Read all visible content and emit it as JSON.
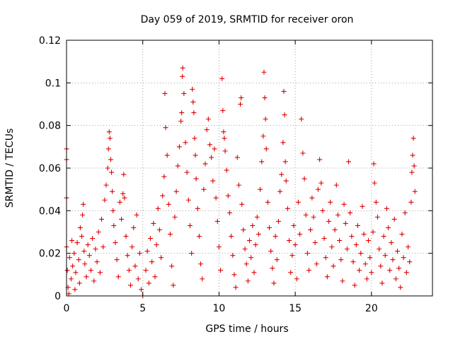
{
  "chart_data": {
    "type": "scatter",
    "title": "Day 059 of 2019, SRMTID for receiver oron",
    "xlabel": "GPS time / hours",
    "ylabel": "SRMTID / TECUs",
    "xlim": [
      0,
      24
    ],
    "ylim": [
      0,
      0.12
    ],
    "xticks": [
      0,
      5,
      10,
      15,
      20
    ],
    "xtick_labels": [
      "0",
      "5",
      "10",
      "15",
      "20"
    ],
    "yticks": [
      0,
      0.02,
      0.04,
      0.06,
      0.08,
      0.1,
      0.12
    ],
    "ytick_labels": [
      "0",
      "0.02",
      "0.04",
      "0.06",
      "0.08",
      "0.1",
      "0.12"
    ],
    "grid": true,
    "marker": "+",
    "series": [
      {
        "name": "SRMTID",
        "color": "#dd0000",
        "points": [
          [
            0.0,
            0.069
          ],
          [
            0.0,
            0.064
          ],
          [
            0.0,
            0.046
          ],
          [
            0.0,
            0.023
          ],
          [
            0.05,
            0.012
          ],
          [
            0.1,
            0.004
          ],
          [
            0.15,
            0.001
          ],
          [
            0.2,
            0.018
          ],
          [
            0.3,
            0.008
          ],
          [
            0.35,
            0.026
          ],
          [
            0.4,
            0.014
          ],
          [
            0.5,
            0.02
          ],
          [
            0.55,
            0.003
          ],
          [
            0.6,
            0.011
          ],
          [
            0.7,
            0.025
          ],
          [
            0.8,
            0.017
          ],
          [
            0.85,
            0.006
          ],
          [
            0.9,
            0.032
          ],
          [
            1.0,
            0.028
          ],
          [
            1.05,
            0.038
          ],
          [
            1.1,
            0.043
          ],
          [
            1.15,
            0.021
          ],
          [
            1.2,
            0.015
          ],
          [
            1.3,
            0.009
          ],
          [
            1.4,
            0.024
          ],
          [
            1.5,
            0.019
          ],
          [
            1.6,
            0.012
          ],
          [
            1.7,
            0.027
          ],
          [
            1.8,
            0.007
          ],
          [
            1.9,
            0.022
          ],
          [
            2.0,
            0.016
          ],
          [
            2.1,
            0.03
          ],
          [
            2.2,
            0.011
          ],
          [
            2.3,
            0.036
          ],
          [
            2.4,
            0.023
          ],
          [
            2.5,
            0.045
          ],
          [
            2.6,
            0.052
          ],
          [
            2.7,
            0.06
          ],
          [
            2.75,
            0.069
          ],
          [
            2.8,
            0.077
          ],
          [
            2.85,
            0.074
          ],
          [
            2.9,
            0.064
          ],
          [
            2.95,
            0.058
          ],
          [
            3.0,
            0.049
          ],
          [
            3.05,
            0.04
          ],
          [
            3.1,
            0.033
          ],
          [
            3.2,
            0.025
          ],
          [
            3.3,
            0.017
          ],
          [
            3.4,
            0.009
          ],
          [
            3.5,
            0.044
          ],
          [
            3.6,
            0.036
          ],
          [
            3.7,
            0.048
          ],
          [
            3.75,
            0.057
          ],
          [
            3.8,
            0.046
          ],
          [
            3.9,
            0.028
          ],
          [
            4.0,
            0.019
          ],
          [
            4.1,
            0.012
          ],
          [
            4.2,
            0.005
          ],
          [
            4.3,
            0.023
          ],
          [
            4.4,
            0.032
          ],
          [
            4.5,
            0.014
          ],
          [
            4.6,
            0.038
          ],
          [
            4.7,
            0.008
          ],
          [
            4.8,
            0.02
          ],
          [
            4.9,
            0.003
          ],
          [
            5.0,
            0.0
          ],
          [
            5.2,
            0.012
          ],
          [
            5.3,
            0.021
          ],
          [
            5.4,
            0.006
          ],
          [
            5.5,
            0.027
          ],
          [
            5.6,
            0.016
          ],
          [
            5.7,
            0.034
          ],
          [
            5.8,
            0.009
          ],
          [
            5.9,
            0.024
          ],
          [
            6.0,
            0.041
          ],
          [
            6.1,
            0.031
          ],
          [
            6.2,
            0.018
          ],
          [
            6.3,
            0.047
          ],
          [
            6.4,
            0.056
          ],
          [
            6.45,
            0.095
          ],
          [
            6.5,
            0.079
          ],
          [
            6.6,
            0.066
          ],
          [
            6.7,
            0.043
          ],
          [
            6.8,
            0.029
          ],
          [
            6.9,
            0.014
          ],
          [
            7.0,
            0.005
          ],
          [
            7.1,
            0.037
          ],
          [
            7.2,
            0.049
          ],
          [
            7.3,
            0.061
          ],
          [
            7.4,
            0.07
          ],
          [
            7.5,
            0.082
          ],
          [
            7.55,
            0.086
          ],
          [
            7.6,
            0.103
          ],
          [
            7.62,
            0.107
          ],
          [
            7.7,
            0.095
          ],
          [
            7.8,
            0.072
          ],
          [
            7.9,
            0.058
          ],
          [
            8.0,
            0.045
          ],
          [
            8.1,
            0.033
          ],
          [
            8.2,
            0.02
          ],
          [
            8.25,
            0.097
          ],
          [
            8.3,
            0.091
          ],
          [
            8.35,
            0.086
          ],
          [
            8.4,
            0.074
          ],
          [
            8.45,
            0.066
          ],
          [
            8.5,
            0.055
          ],
          [
            8.6,
            0.041
          ],
          [
            8.7,
            0.028
          ],
          [
            8.8,
            0.015
          ],
          [
            8.9,
            0.008
          ],
          [
            9.0,
            0.05
          ],
          [
            9.1,
            0.062
          ],
          [
            9.2,
            0.078
          ],
          [
            9.3,
            0.083
          ],
          [
            9.4,
            0.071
          ],
          [
            9.5,
            0.065
          ],
          [
            9.6,
            0.054
          ],
          [
            9.7,
            0.069
          ],
          [
            9.8,
            0.046
          ],
          [
            9.9,
            0.035
          ],
          [
            10.0,
            0.023
          ],
          [
            10.1,
            0.012
          ],
          [
            10.2,
            0.102
          ],
          [
            10.25,
            0.087
          ],
          [
            10.3,
            0.077
          ],
          [
            10.35,
            0.074
          ],
          [
            10.4,
            0.068
          ],
          [
            10.5,
            0.059
          ],
          [
            10.6,
            0.047
          ],
          [
            10.7,
            0.039
          ],
          [
            10.8,
            0.028
          ],
          [
            10.9,
            0.019
          ],
          [
            11.0,
            0.01
          ],
          [
            11.1,
            0.004
          ],
          [
            11.2,
            0.065
          ],
          [
            11.3,
            0.052
          ],
          [
            11.4,
            0.09
          ],
          [
            11.45,
            0.093
          ],
          [
            11.5,
            0.043
          ],
          [
            11.6,
            0.031
          ],
          [
            11.7,
            0.022
          ],
          [
            11.8,
            0.015
          ],
          [
            11.9,
            0.007
          ],
          [
            12.0,
            0.026
          ],
          [
            12.1,
            0.018
          ],
          [
            12.2,
            0.033
          ],
          [
            12.3,
            0.011
          ],
          [
            12.4,
            0.024
          ],
          [
            12.5,
            0.037
          ],
          [
            12.6,
            0.029
          ],
          [
            12.7,
            0.05
          ],
          [
            12.8,
            0.063
          ],
          [
            12.9,
            0.075
          ],
          [
            12.95,
            0.105
          ],
          [
            13.0,
            0.093
          ],
          [
            13.05,
            0.083
          ],
          [
            13.1,
            0.069
          ],
          [
            13.2,
            0.044
          ],
          [
            13.3,
            0.032
          ],
          [
            13.4,
            0.021
          ],
          [
            13.5,
            0.013
          ],
          [
            13.6,
            0.006
          ],
          [
            13.7,
            0.028
          ],
          [
            13.8,
            0.017
          ],
          [
            13.9,
            0.035
          ],
          [
            14.0,
            0.049
          ],
          [
            14.1,
            0.057
          ],
          [
            14.2,
            0.072
          ],
          [
            14.25,
            0.096
          ],
          [
            14.3,
            0.085
          ],
          [
            14.35,
            0.063
          ],
          [
            14.4,
            0.054
          ],
          [
            14.5,
            0.041
          ],
          [
            14.6,
            0.026
          ],
          [
            14.7,
            0.011
          ],
          [
            14.8,
            0.019
          ],
          [
            14.9,
            0.033
          ],
          [
            15.0,
            0.024
          ],
          [
            15.1,
            0.008
          ],
          [
            15.2,
            0.044
          ],
          [
            15.3,
            0.029
          ],
          [
            15.4,
            0.083
          ],
          [
            15.5,
            0.067
          ],
          [
            15.6,
            0.055
          ],
          [
            15.7,
            0.038
          ],
          [
            15.8,
            0.02
          ],
          [
            15.9,
            0.012
          ],
          [
            16.0,
            0.031
          ],
          [
            16.1,
            0.046
          ],
          [
            16.2,
            0.037
          ],
          [
            16.3,
            0.025
          ],
          [
            16.4,
            0.015
          ],
          [
            16.5,
            0.05
          ],
          [
            16.6,
            0.064
          ],
          [
            16.7,
            0.053
          ],
          [
            16.8,
            0.04
          ],
          [
            16.9,
            0.027
          ],
          [
            17.0,
            0.018
          ],
          [
            17.1,
            0.009
          ],
          [
            17.2,
            0.035
          ],
          [
            17.3,
            0.044
          ],
          [
            17.4,
            0.023
          ],
          [
            17.5,
            0.014
          ],
          [
            17.6,
            0.031
          ],
          [
            17.7,
            0.052
          ],
          [
            17.8,
            0.038
          ],
          [
            17.9,
            0.026
          ],
          [
            18.0,
            0.017
          ],
          [
            18.1,
            0.007
          ],
          [
            18.2,
            0.043
          ],
          [
            18.3,
            0.034
          ],
          [
            18.4,
            0.022
          ],
          [
            18.5,
            0.063
          ],
          [
            18.6,
            0.039
          ],
          [
            18.7,
            0.028
          ],
          [
            18.8,
            0.016
          ],
          [
            18.9,
            0.005
          ],
          [
            19.0,
            0.024
          ],
          [
            19.1,
            0.033
          ],
          [
            19.2,
            0.012
          ],
          [
            19.3,
            0.02
          ],
          [
            19.4,
            0.042
          ],
          [
            19.5,
            0.029
          ],
          [
            19.6,
            0.015
          ],
          [
            19.7,
            0.008
          ],
          [
            19.8,
            0.026
          ],
          [
            19.9,
            0.018
          ],
          [
            20.0,
            0.011
          ],
          [
            20.1,
            0.03
          ],
          [
            20.15,
            0.062
          ],
          [
            20.2,
            0.053
          ],
          [
            20.3,
            0.044
          ],
          [
            20.4,
            0.037
          ],
          [
            20.5,
            0.022
          ],
          [
            20.6,
            0.014
          ],
          [
            20.7,
            0.006
          ],
          [
            20.8,
            0.028
          ],
          [
            20.9,
            0.019
          ],
          [
            21.0,
            0.041
          ],
          [
            21.1,
            0.032
          ],
          [
            21.2,
            0.012
          ],
          [
            21.3,
            0.025
          ],
          [
            21.4,
            0.017
          ],
          [
            21.5,
            0.036
          ],
          [
            21.6,
            0.008
          ],
          [
            21.7,
            0.021
          ],
          [
            21.8,
            0.013
          ],
          [
            21.9,
            0.004
          ],
          [
            22.0,
            0.029
          ],
          [
            22.1,
            0.018
          ],
          [
            22.2,
            0.039
          ],
          [
            22.3,
            0.011
          ],
          [
            22.4,
            0.023
          ],
          [
            22.5,
            0.016
          ],
          [
            22.6,
            0.044
          ],
          [
            22.65,
            0.058
          ],
          [
            22.7,
            0.066
          ],
          [
            22.75,
            0.074
          ],
          [
            22.8,
            0.061
          ],
          [
            22.85,
            0.049
          ]
        ]
      }
    ]
  }
}
